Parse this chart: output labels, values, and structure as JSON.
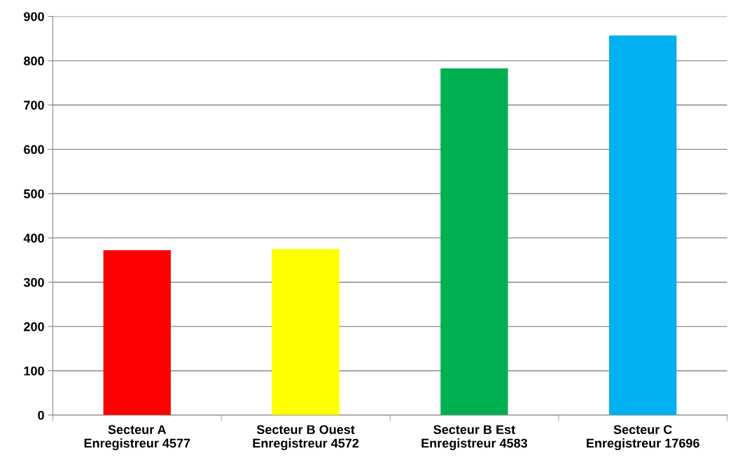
{
  "chart_data": {
    "type": "bar",
    "categories": [
      "Secteur A\nEnregistreur 4577",
      "Secteur B Ouest\nEnregistreur 4572",
      "Secteur B Est\nEnregistreur 4583",
      "Secteur C\nEnregistreur 17696"
    ],
    "values": [
      372,
      375,
      783,
      857
    ],
    "colors": [
      "#ff0000",
      "#ffff00",
      "#00b050",
      "#00b0f0"
    ],
    "ylim": [
      0,
      900
    ],
    "yticks": [
      0,
      100,
      200,
      300,
      400,
      500,
      600,
      700,
      800,
      900
    ],
    "grid": "y",
    "legend": false
  }
}
